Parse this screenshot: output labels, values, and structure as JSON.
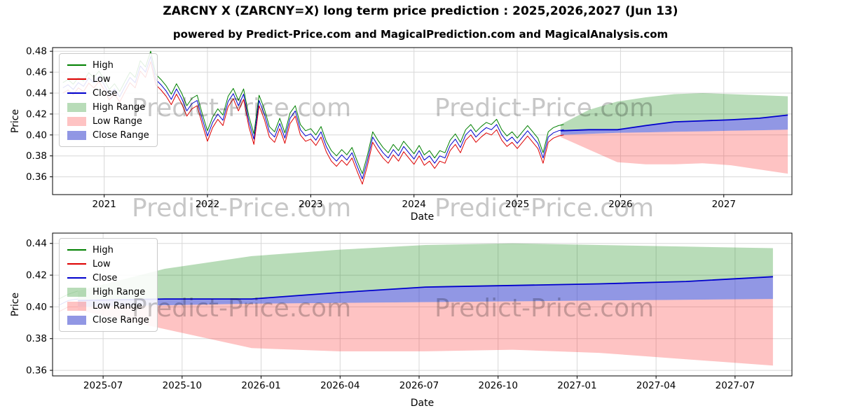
{
  "header": {
    "title": "ZARCNY X (ZARCNY=X) long term price prediction : 2025,2026,2027 (Jun 13)",
    "subtitle": "powered by Predict-Price.com and MagicalPrediction.com and MagicalAnalysis.com"
  },
  "watermark": {
    "text": "Predict-Price.com"
  },
  "colors": {
    "high": "#008000",
    "low": "#dd0000",
    "close": "#0000cc",
    "high_range": "rgba(0,128,0,0.28)",
    "low_range": "rgba(250,40,40,0.28)",
    "close_range": "rgba(55,65,205,0.55)",
    "grid": "#d8d8d8",
    "axis": "#000000"
  },
  "legend": [
    {
      "label": "High",
      "type": "line",
      "color": "#008000"
    },
    {
      "label": "Low",
      "type": "line",
      "color": "#dd0000"
    },
    {
      "label": "Close",
      "type": "line",
      "color": "#0000cc"
    },
    {
      "label": "High Range",
      "type": "patch",
      "color": "rgba(0,128,0,0.28)"
    },
    {
      "label": "Low Range",
      "type": "patch",
      "color": "rgba(250,40,40,0.28)"
    },
    {
      "label": "Close Range",
      "type": "patch",
      "color": "rgba(55,65,205,0.55)"
    }
  ],
  "chart_data": [
    {
      "type": "line",
      "name": "history-with-forecast",
      "xlabel": "Date",
      "ylabel": "Price",
      "xlim": [
        2020.5,
        2027.66
      ],
      "ylim": [
        0.343,
        0.4835
      ],
      "grid": true,
      "legend_position": "upper-left",
      "xticks": {
        "values": [
          2021,
          2022,
          2023,
          2024,
          2025,
          2026,
          2027
        ],
        "labels": [
          "2021",
          "2022",
          "2023",
          "2024",
          "2025",
          "2026",
          "2027"
        ]
      },
      "yticks": {
        "values": [
          0.36,
          0.38,
          0.4,
          0.42,
          0.44,
          0.46,
          0.48
        ],
        "labels": [
          "0.36",
          "0.38",
          "0.40",
          "0.42",
          "0.44",
          "0.46",
          "0.48"
        ]
      },
      "history": {
        "x_start": 2020.6,
        "x_step": 0.05,
        "high": [
          0.45,
          0.453,
          0.4485,
          0.455,
          0.4515,
          0.4595,
          0.455,
          0.461,
          0.453,
          0.4435,
          0.449,
          0.4415,
          0.451,
          0.46,
          0.455,
          0.471,
          0.465,
          0.48,
          0.458,
          0.453,
          0.447,
          0.439,
          0.449,
          0.44,
          0.428,
          0.435,
          0.438,
          0.42,
          0.404,
          0.417,
          0.425,
          0.419,
          0.437,
          0.4445,
          0.433,
          0.444,
          0.418,
          0.401,
          0.438,
          0.425,
          0.408,
          0.403,
          0.416,
          0.402,
          0.421,
          0.428,
          0.41,
          0.404,
          0.406,
          0.4,
          0.408,
          0.394,
          0.385,
          0.38,
          0.386,
          0.381,
          0.388,
          0.375,
          0.363,
          0.381,
          0.403,
          0.395,
          0.388,
          0.383,
          0.391,
          0.385,
          0.394,
          0.388,
          0.382,
          0.39,
          0.381,
          0.385,
          0.378,
          0.385,
          0.383,
          0.395,
          0.401,
          0.393,
          0.405,
          0.41,
          0.403,
          0.408,
          0.412,
          0.41,
          0.415,
          0.405,
          0.399,
          0.403,
          0.397,
          0.403,
          0.409,
          0.403,
          0.397,
          0.383,
          0.403,
          0.407,
          0.409,
          0.41
        ],
        "low": [
          0.44,
          0.443,
          0.4385,
          0.445,
          0.4415,
          0.4495,
          0.445,
          0.451,
          0.443,
          0.4335,
          0.439,
          0.4315,
          0.441,
          0.45,
          0.445,
          0.461,
          0.455,
          0.47,
          0.448,
          0.443,
          0.437,
          0.429,
          0.439,
          0.43,
          0.418,
          0.425,
          0.428,
          0.41,
          0.394,
          0.407,
          0.415,
          0.409,
          0.427,
          0.4345,
          0.423,
          0.434,
          0.408,
          0.391,
          0.428,
          0.415,
          0.398,
          0.393,
          0.406,
          0.392,
          0.411,
          0.418,
          0.4,
          0.394,
          0.396,
          0.39,
          0.398,
          0.384,
          0.375,
          0.37,
          0.376,
          0.371,
          0.378,
          0.365,
          0.353,
          0.371,
          0.393,
          0.385,
          0.378,
          0.373,
          0.381,
          0.375,
          0.384,
          0.378,
          0.372,
          0.38,
          0.371,
          0.375,
          0.368,
          0.375,
          0.373,
          0.385,
          0.391,
          0.383,
          0.395,
          0.4,
          0.393,
          0.398,
          0.402,
          0.4,
          0.405,
          0.395,
          0.389,
          0.393,
          0.387,
          0.393,
          0.399,
          0.393,
          0.387,
          0.373,
          0.393,
          0.397,
          0.399,
          0.4
        ],
        "close": [
          0.445,
          0.448,
          0.4435,
          0.45,
          0.4465,
          0.4545,
          0.45,
          0.456,
          0.448,
          0.4385,
          0.444,
          0.4365,
          0.446,
          0.455,
          0.45,
          0.466,
          0.46,
          0.475,
          0.453,
          0.448,
          0.442,
          0.434,
          0.444,
          0.435,
          0.423,
          0.43,
          0.433,
          0.415,
          0.399,
          0.412,
          0.42,
          0.414,
          0.432,
          0.4395,
          0.428,
          0.439,
          0.413,
          0.396,
          0.433,
          0.42,
          0.403,
          0.398,
          0.411,
          0.397,
          0.416,
          0.423,
          0.405,
          0.399,
          0.401,
          0.395,
          0.403,
          0.389,
          0.38,
          0.375,
          0.381,
          0.376,
          0.383,
          0.37,
          0.358,
          0.376,
          0.398,
          0.39,
          0.383,
          0.378,
          0.386,
          0.38,
          0.389,
          0.383,
          0.377,
          0.385,
          0.376,
          0.38,
          0.373,
          0.38,
          0.378,
          0.39,
          0.396,
          0.388,
          0.4,
          0.405,
          0.398,
          0.403,
          0.407,
          0.405,
          0.41,
          0.4,
          0.394,
          0.398,
          0.392,
          0.398,
          0.404,
          0.398,
          0.392,
          0.378,
          0.398,
          0.402,
          0.404,
          0.405
        ]
      },
      "forecast": {
        "x_start": 2025.42,
        "x_step": 0.275,
        "close": [
          0.404,
          0.405,
          0.405,
          0.409,
          0.4125,
          0.4135,
          0.4145,
          0.416,
          0.419
        ],
        "high_range_upper": [
          0.41,
          0.424,
          0.432,
          0.436,
          0.439,
          0.44,
          0.439,
          0.438,
          0.437
        ],
        "close_range_lower": [
          0.4,
          0.401,
          0.402,
          0.4025,
          0.403,
          0.4035,
          0.404,
          0.4045,
          0.405
        ],
        "low_range_lower": [
          0.398,
          0.386,
          0.374,
          0.372,
          0.372,
          0.373,
          0.371,
          0.367,
          0.363
        ]
      }
    },
    {
      "type": "line",
      "name": "forecast-detail",
      "xlabel": "Date",
      "ylabel": "Price",
      "xlim": [
        2025.34,
        2027.68
      ],
      "ylim": [
        0.3565,
        0.4465
      ],
      "grid": true,
      "legend_position": "upper-left",
      "xticks": {
        "values": [
          2025.5,
          2025.75,
          2026.0,
          2026.25,
          2026.5,
          2026.75,
          2027.0,
          2027.25,
          2027.5
        ],
        "labels": [
          "2025-07",
          "2025-10",
          "2026-01",
          "2026-04",
          "2026-07",
          "2026-10",
          "2027-01",
          "2027-04",
          "2027-07"
        ]
      },
      "yticks": {
        "values": [
          0.36,
          0.38,
          0.4,
          0.42,
          0.44
        ],
        "labels": [
          "0.36",
          "0.38",
          "0.40",
          "0.42",
          "0.44"
        ]
      },
      "history": {
        "x_start": 2025.36,
        "x_step": 0.03,
        "high": [
          0.405,
          0.408,
          0.41
        ],
        "low": [
          0.397,
          0.4,
          0.4
        ],
        "close": [
          0.401,
          0.404,
          0.405
        ]
      },
      "forecast": {
        "x_start": 2025.42,
        "x_step": 0.275,
        "close": [
          0.404,
          0.405,
          0.405,
          0.409,
          0.4125,
          0.4135,
          0.4145,
          0.416,
          0.419
        ],
        "high_range_upper": [
          0.41,
          0.424,
          0.432,
          0.436,
          0.439,
          0.44,
          0.439,
          0.438,
          0.437
        ],
        "close_range_lower": [
          0.4,
          0.401,
          0.402,
          0.4025,
          0.403,
          0.4035,
          0.404,
          0.4045,
          0.405
        ],
        "low_range_lower": [
          0.398,
          0.386,
          0.374,
          0.372,
          0.372,
          0.373,
          0.371,
          0.367,
          0.363
        ]
      }
    }
  ]
}
